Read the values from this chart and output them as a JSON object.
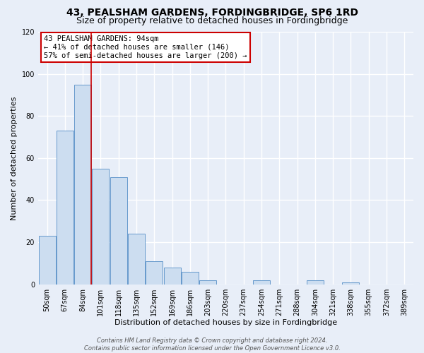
{
  "title": "43, PEALSHAM GARDENS, FORDINGBRIDGE, SP6 1RD",
  "subtitle": "Size of property relative to detached houses in Fordingbridge",
  "xlabel": "Distribution of detached houses by size in Fordingbridge",
  "ylabel": "Number of detached properties",
  "bar_labels": [
    "50sqm",
    "67sqm",
    "84sqm",
    "101sqm",
    "118sqm",
    "135sqm",
    "152sqm",
    "169sqm",
    "186sqm",
    "203sqm",
    "220sqm",
    "237sqm",
    "254sqm",
    "271sqm",
    "288sqm",
    "304sqm",
    "321sqm",
    "338sqm",
    "355sqm",
    "372sqm",
    "389sqm"
  ],
  "bar_values": [
    23,
    73,
    95,
    55,
    51,
    24,
    11,
    8,
    6,
    2,
    0,
    0,
    2,
    0,
    0,
    2,
    0,
    1,
    0,
    0,
    0
  ],
  "bar_color": "#ccddf0",
  "bar_edge_color": "#6699cc",
  "vline_color": "#cc0000",
  "vline_pos": 2.475,
  "ylim": [
    0,
    120
  ],
  "yticks": [
    0,
    20,
    40,
    60,
    80,
    100,
    120
  ],
  "annotation_title": "43 PEALSHAM GARDENS: 94sqm",
  "annotation_line1": "← 41% of detached houses are smaller (146)",
  "annotation_line2": "57% of semi-detached houses are larger (200) →",
  "annotation_box_facecolor": "#ffffff",
  "annotation_box_edgecolor": "#cc0000",
  "footer_line1": "Contains HM Land Registry data © Crown copyright and database right 2024.",
  "footer_line2": "Contains public sector information licensed under the Open Government Licence v3.0.",
  "fig_facecolor": "#e8eef8",
  "axes_facecolor": "#e8eef8",
  "grid_color": "#ffffff",
  "title_fontsize": 10,
  "subtitle_fontsize": 9,
  "axis_label_fontsize": 8,
  "tick_fontsize": 7,
  "annotation_fontsize": 7.5,
  "footer_fontsize": 6
}
